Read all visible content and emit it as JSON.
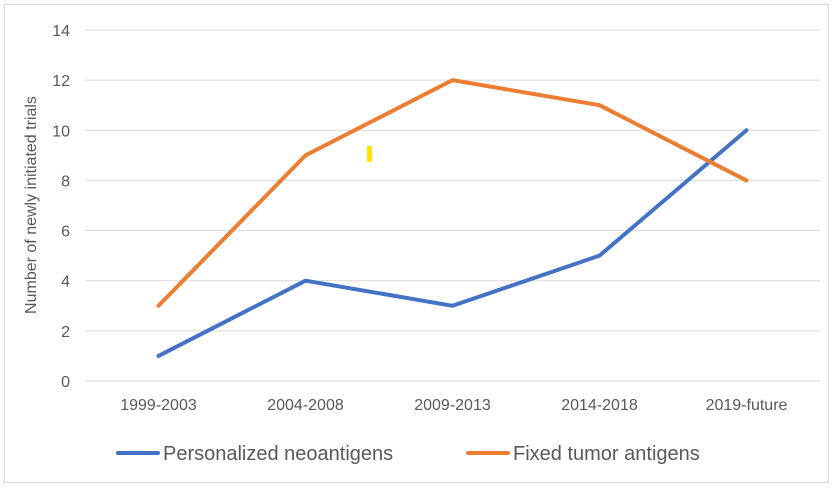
{
  "chart_data": {
    "type": "line",
    "categories": [
      "1999-2003",
      "2004-2008",
      "2009-2013",
      "2014-2018",
      "2019-future"
    ],
    "series": [
      {
        "name": "Personalized neoantigens",
        "color": "#4472C4",
        "values": [
          1,
          4,
          3,
          5,
          10
        ]
      },
      {
        "name": "Fixed tumor antigens",
        "color": "#ED7D31",
        "values": [
          3,
          9,
          12,
          11,
          8
        ]
      }
    ],
    "ylabel": "Number of newly initiated trials",
    "xlabel": "",
    "ylim": [
      0,
      14
    ],
    "yticks": [
      0,
      2,
      4,
      6,
      8,
      10,
      12,
      14
    ],
    "grid": true,
    "legend_position": "bottom",
    "gridline_color": "#d9d9d9",
    "annotation_mark_color": "#FFE600"
  }
}
